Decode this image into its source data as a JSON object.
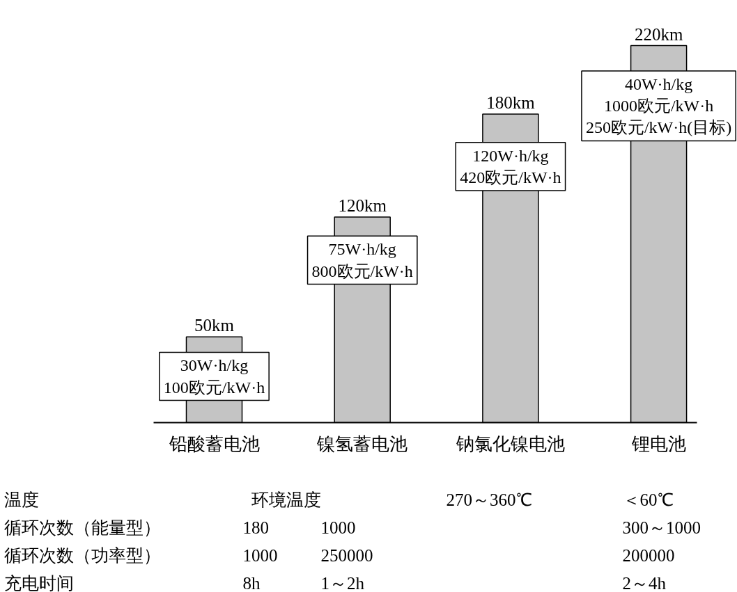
{
  "chart_data": {
    "type": "bar",
    "categories": [
      "铅酸蓄电池",
      "镍氢蓄电池",
      "钠氯化镍电池",
      "锂电池"
    ],
    "values": [
      50,
      120,
      180,
      220
    ],
    "color": "#c4c4c4",
    "value_labels": [
      "50km",
      "120km",
      "180km",
      "220km"
    ],
    "annotations": [
      "30W·h/kg\n100欧元/kW·h",
      "75W·h/kg\n800欧元/kW·h",
      "120W·h/kg\n420欧元/kW·h",
      "40W·h/kg\n1000欧元/kW·h\n250欧元/kW·h(目标)",
      "温度",
      "环境温度",
      "270～360℃",
      "＜60℃",
      "循环次数（能量型）",
      "180",
      "1000",
      "300～1000",
      "循环次数（功率型）",
      "1000",
      "250000",
      "200000",
      "充电时间",
      "8h",
      "1～2h",
      "2～4h"
    ]
  }
}
